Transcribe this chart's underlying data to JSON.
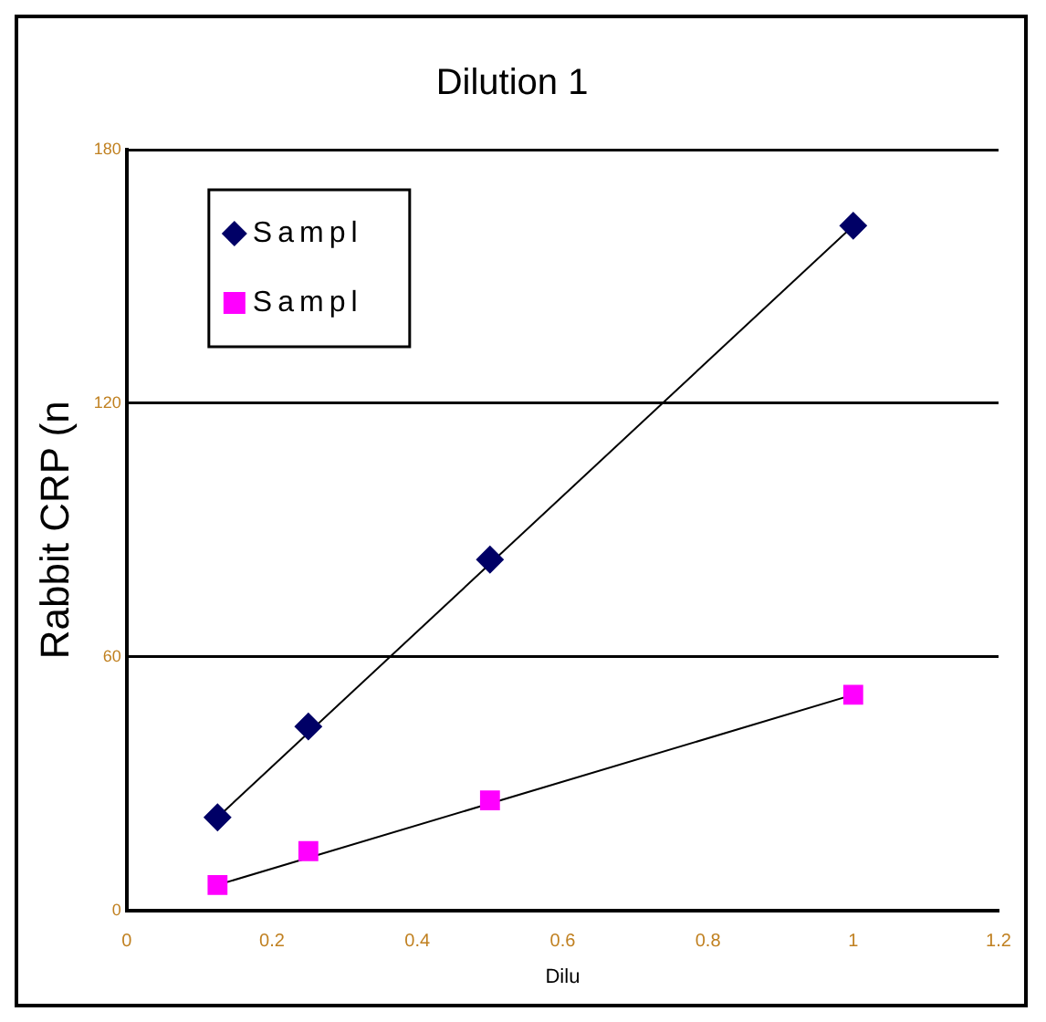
{
  "chart_data": {
    "type": "scatter",
    "title": "Dilution 1",
    "xlabel": "Dilu",
    "ylabel": "Rabbit CRP (n",
    "series": [
      {
        "name": "Sampl",
        "color": "#000066",
        "x": [
          0.125,
          0.25,
          0.5,
          1.0
        ],
        "values": [
          22,
          43.5,
          83,
          162
        ],
        "marker": "diamond"
      },
      {
        "name": "Sampl",
        "color": "#ff00ff",
        "x": [
          0.125,
          0.25,
          0.5,
          1.0
        ],
        "values": [
          6,
          14,
          26,
          51
        ],
        "marker": "square"
      },
      {
        "type": "line",
        "color": "#000000",
        "x": [
          0.125,
          1.0
        ],
        "values": [
          22,
          162
        ],
        "marker": "none"
      },
      {
        "type": "line",
        "color": "#000000",
        "x": [
          0.125,
          1.0
        ],
        "values": [
          6,
          51
        ],
        "marker": "none"
      }
    ],
    "xlim": [
      0,
      1.2
    ],
    "xticks": [
      0,
      0.2,
      0.4,
      0.6,
      0.8,
      1,
      1.2
    ],
    "ylim": [
      0,
      180
    ],
    "yticks": [
      0,
      60,
      120,
      180
    ],
    "grid": "y",
    "legend": "top left"
  }
}
